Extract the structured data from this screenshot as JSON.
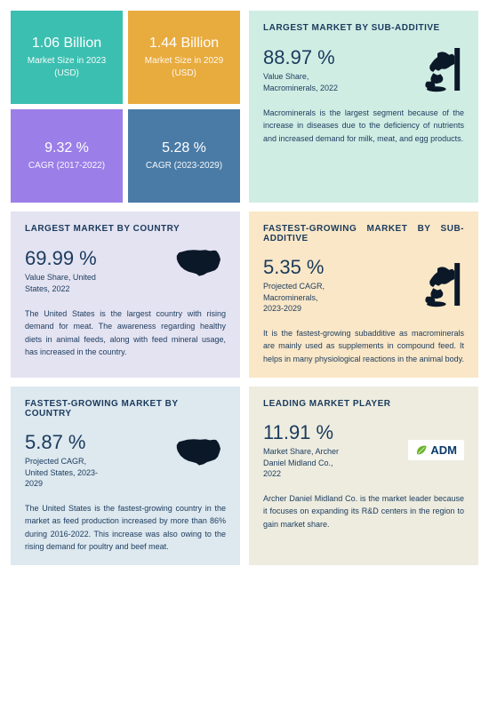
{
  "quad": [
    {
      "value": "1.06 Billion",
      "label1": "Market Size in 2023",
      "label2": "(USD)",
      "bg": "#3bbfb0"
    },
    {
      "value": "1.44 Billion",
      "label1": "Market Size in 2029",
      "label2": "(USD)",
      "bg": "#e8ab3e"
    },
    {
      "value": "9.32 %",
      "label1": "CAGR (2017-2022)",
      "label2": "",
      "bg": "#9b7ee8"
    },
    {
      "value": "5.28 %",
      "label1": "CAGR (2023-2029)",
      "label2": "",
      "bg": "#4a7ba6"
    }
  ],
  "cards": [
    {
      "title": "LARGEST MARKET BY SUB-ADDITIVE",
      "titleJustified": false,
      "value": "88.97 %",
      "sublabel": "Value Share,\nMacrominerals, 2022",
      "icon": "animal",
      "bg": "#d0ede4",
      "desc": "Macrominerals is the largest segment because of the increase in diseases due to the deficiency of nutrients and increased demand for milk, meat, and egg products."
    },
    {
      "title": "LARGEST MARKET BY COUNTRY",
      "titleJustified": false,
      "value": "69.99 %",
      "sublabel": "Value Share, United\nStates, 2022",
      "icon": "usa",
      "bg": "#e4e3f2",
      "desc": "The United States is the largest country with rising demand for meat. The awareness regarding healthy diets in animal feeds, along with feed mineral usage, has increased in the country."
    },
    {
      "title": "FASTEST-GROWING MARKET BY SUB-ADDITIVE",
      "titleJustified": true,
      "value": "5.35 %",
      "sublabel": "Projected CAGR,\nMacrominerals,\n2023-2029",
      "icon": "animal",
      "bg": "#fae7c7",
      "desc": "It is the fastest-growing subadditive as macrominerals are mainly used as supplements in compound feed. It helps in many physiological reactions in the animal body."
    },
    {
      "title": "FASTEST-GROWING MARKET BY COUNTRY",
      "titleJustified": false,
      "value": "5.87 %",
      "sublabel": "Projected CAGR,\nUnited States, 2023-\n2029",
      "icon": "usa",
      "bg": "#dde8ef",
      "desc": "The United States is the fastest-growing country in the market as feed production increased by more than 86% during 2016-2022. This increase was also owing to the rising demand for poultry and beef meat."
    },
    {
      "title": "LEADING MARKET PLAYER",
      "titleJustified": false,
      "value": "11.91 %",
      "sublabel": "Market Share, Archer\nDaniel Midland Co.,\n2022",
      "icon": "adm",
      "bg": "#edecdf",
      "logoText": "ADM",
      "desc": "Archer Daniel Midland Co. is the market leader because it focuses on expanding its R&D centers in the region to gain market share."
    }
  ],
  "iconColor": "#0b1828"
}
